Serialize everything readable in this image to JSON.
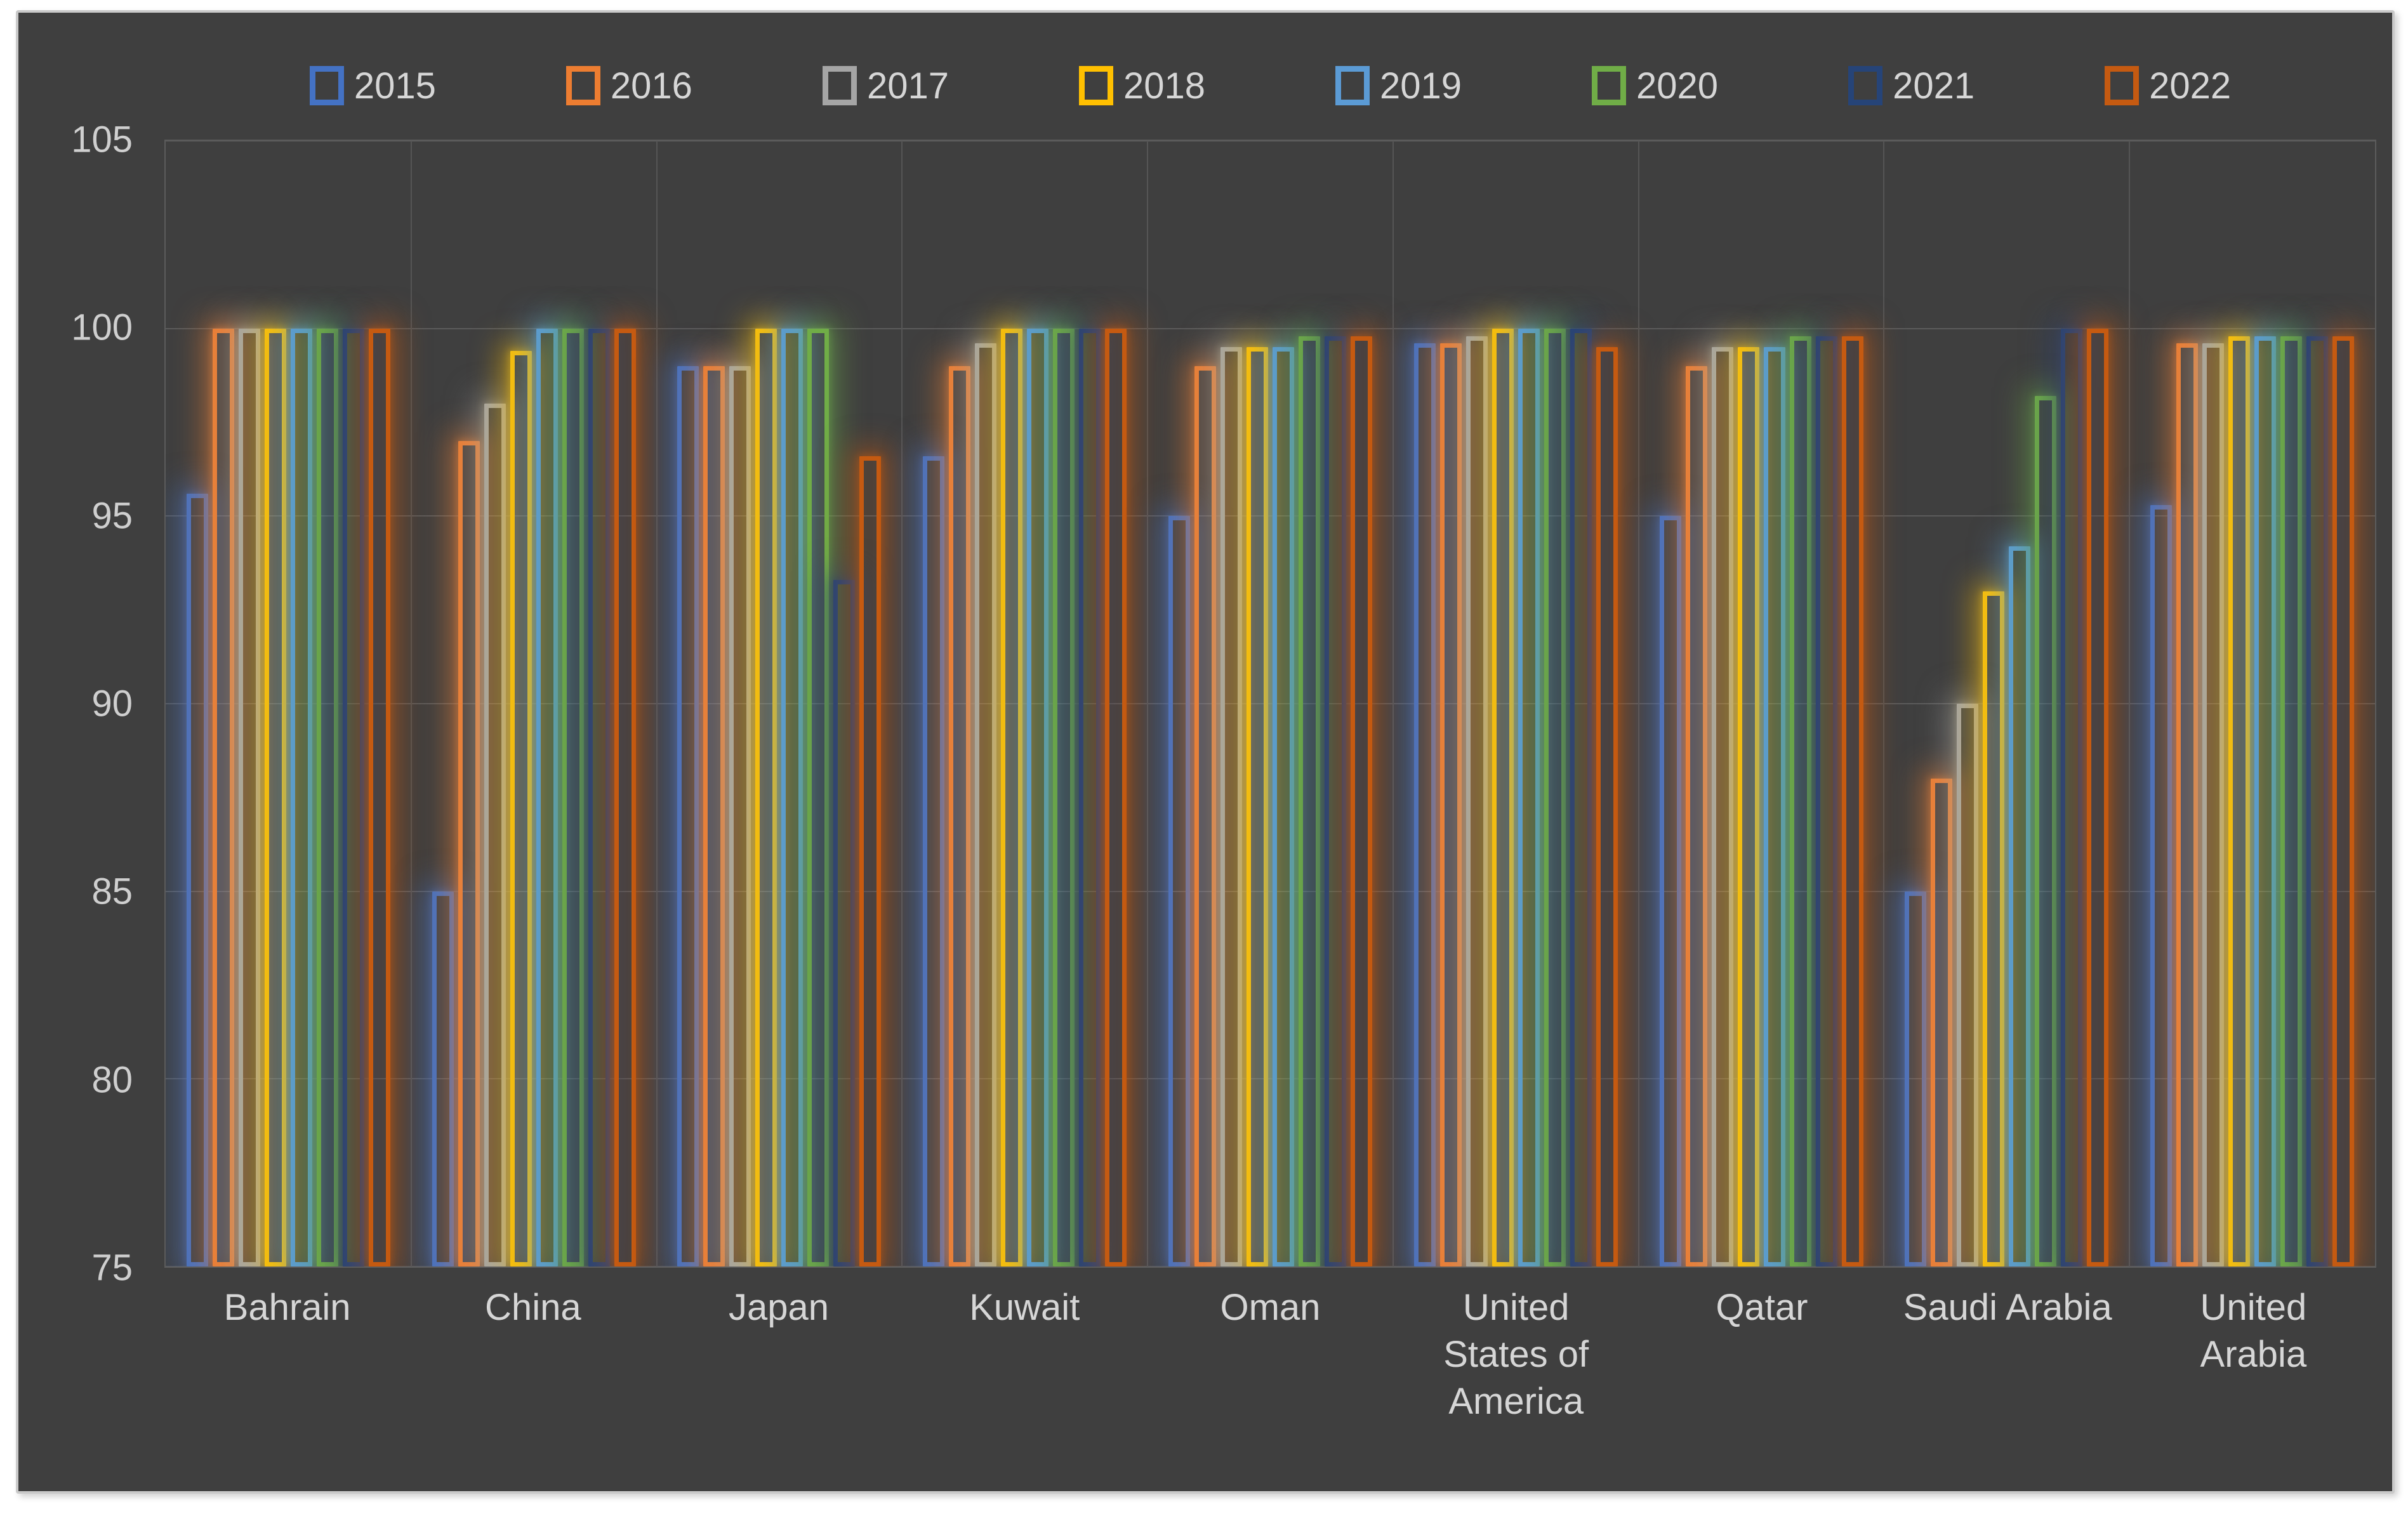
{
  "colors": {
    "page_background": "#FFFFFF",
    "chart_background": "#3F3F3F",
    "chart_border": "#C9C9C9",
    "gridline": "#5B5B5B",
    "axis_text": "#D6D6D6"
  },
  "chart_data": {
    "type": "bar",
    "title": "",
    "xlabel": "",
    "ylabel": "",
    "ylim": [
      75,
      105
    ],
    "yticks": [
      105,
      100,
      95,
      90,
      85,
      80,
      75
    ],
    "grid": true,
    "legend_position": "top",
    "bar_style": "outlined-with-glow",
    "categories": [
      "Bahrain",
      "China",
      "Japan",
      "Kuwait",
      "Oman",
      "United States of America",
      "Qatar",
      "Saudi Arabia",
      "United Arabia"
    ],
    "category_label_lines": [
      [
        "Bahrain"
      ],
      [
        "China"
      ],
      [
        "Japan"
      ],
      [
        "Kuwait"
      ],
      [
        "Oman"
      ],
      [
        "United",
        "States of",
        "America"
      ],
      [
        "Qatar"
      ],
      [
        "Saudi Arabia"
      ],
      [
        "United",
        "Arabia"
      ]
    ],
    "series": [
      {
        "name": "2015",
        "color": "#4472C4",
        "values": [
          95.6,
          85,
          99,
          96.6,
          95,
          99.6,
          95,
          85,
          95.3
        ]
      },
      {
        "name": "2016",
        "color": "#ED7D31",
        "values": [
          100,
          97,
          99,
          99,
          99,
          99.6,
          99,
          88,
          99.6
        ]
      },
      {
        "name": "2017",
        "color": "#A5A5A5",
        "values": [
          100,
          98,
          99,
          99.6,
          99.5,
          99.8,
          99.5,
          90,
          99.6
        ]
      },
      {
        "name": "2018",
        "color": "#FFC000",
        "values": [
          100,
          99.4,
          100,
          100,
          99.5,
          100,
          99.5,
          93,
          99.8
        ]
      },
      {
        "name": "2019",
        "color": "#5B9BD5",
        "values": [
          100,
          100,
          100,
          100,
          99.5,
          100,
          99.5,
          94.2,
          99.8
        ]
      },
      {
        "name": "2020",
        "color": "#70AD47",
        "values": [
          100,
          100,
          100,
          100,
          99.8,
          100,
          99.8,
          98.2,
          99.8
        ]
      },
      {
        "name": "2021",
        "color": "#264478",
        "values": [
          100,
          100,
          93.3,
          100,
          99.8,
          100,
          99.8,
          100,
          99.8
        ]
      },
      {
        "name": "2022",
        "color": "#C55A11",
        "values": [
          100,
          100,
          96.6,
          100,
          99.8,
          99.5,
          99.8,
          100,
          99.8
        ]
      }
    ]
  }
}
